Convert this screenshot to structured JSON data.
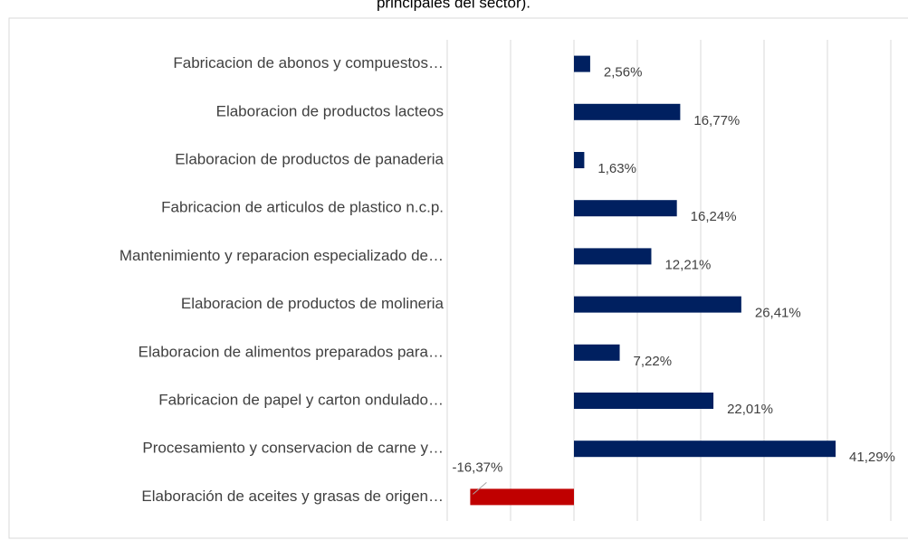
{
  "chart_data": {
    "type": "bar",
    "orientation": "horizontal",
    "title": "principales del sector).",
    "categories": [
      "Fabricacion de abonos y compuestos…",
      "Elaboracion de productos lacteos",
      "Elaboracion de productos de panaderia",
      "Fabricacion de articulos de plastico n.c.p.",
      "Mantenimiento y reparacion especializado de…",
      "Elaboracion de productos de molineria",
      "Elaboracion de alimentos preparados para…",
      "Fabricacion de papel y carton ondulado…",
      "Procesamiento y conservacion de carne y…",
      "Elaboración de aceites y grasas de origen…"
    ],
    "values": [
      2.56,
      16.77,
      1.63,
      16.24,
      12.21,
      26.41,
      7.22,
      22.01,
      41.29,
      -16.37
    ],
    "value_labels": [
      "2,56%",
      "16,77%",
      "1,63%",
      "16,24%",
      "12,21%",
      "26,41%",
      "7,22%",
      "22,01%",
      "41,29%",
      "-16,37%"
    ],
    "colors": [
      "#002060",
      "#002060",
      "#002060",
      "#002060",
      "#002060",
      "#002060",
      "#002060",
      "#002060",
      "#002060",
      "#c00000"
    ],
    "xlim": [
      -20,
      53
    ],
    "xticks": [
      -20,
      -10,
      0,
      10,
      20,
      30,
      40,
      50
    ],
    "grid": true
  }
}
